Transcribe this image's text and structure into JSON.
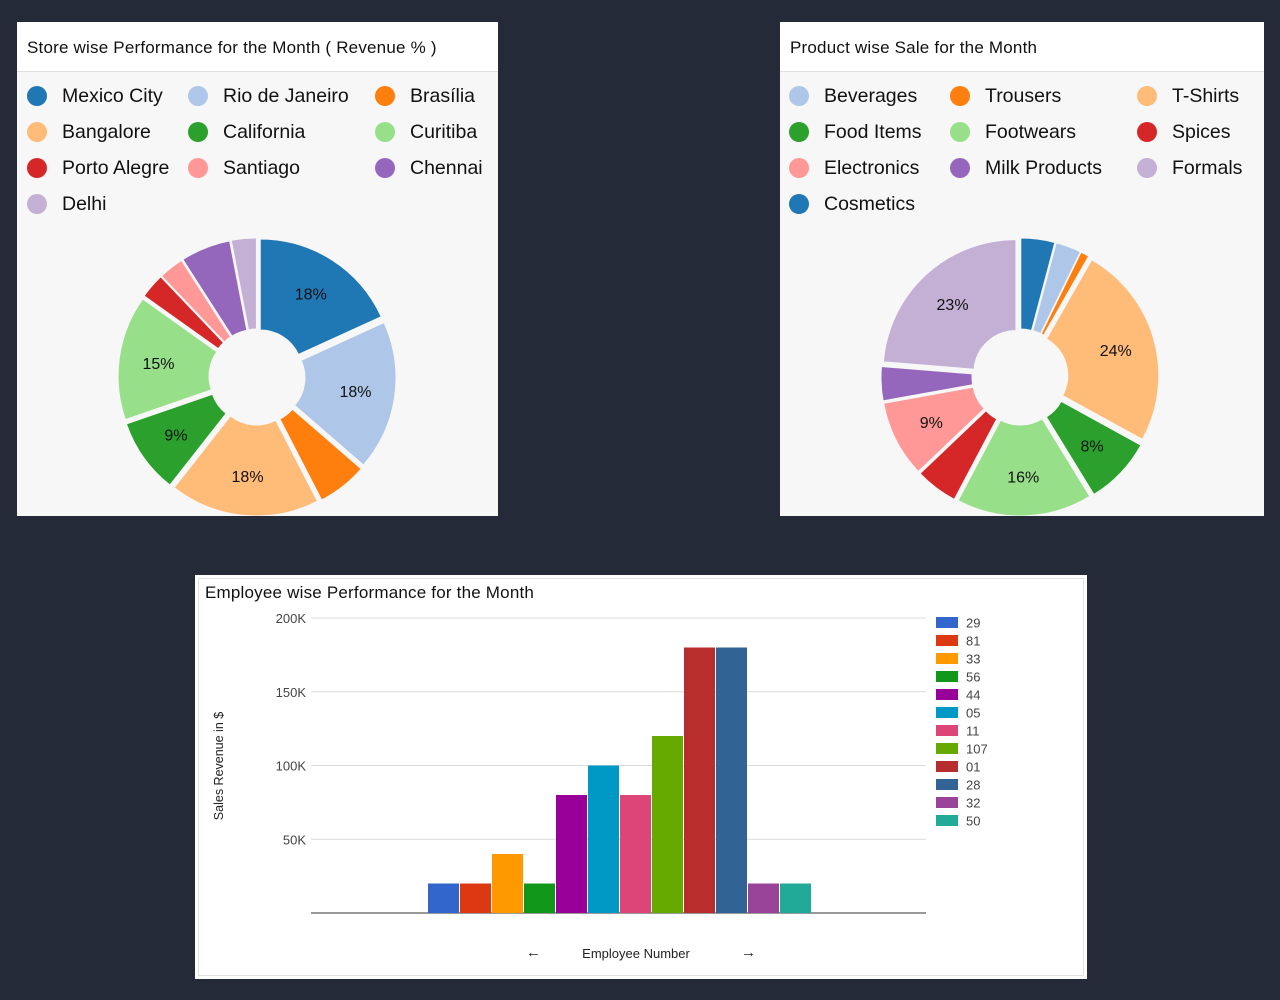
{
  "store_card": {
    "title": "Store wise Performance for the Month ( Revenue % )",
    "legend": [
      {
        "label": "Mexico City",
        "color": "#1f77b4"
      },
      {
        "label": "Rio de Janeiro",
        "color": "#aec7e8"
      },
      {
        "label": "Brasília",
        "color": "#ff7f0e"
      },
      {
        "label": "Bangalore",
        "color": "#ffbb78"
      },
      {
        "label": "California",
        "color": "#2ca02c"
      },
      {
        "label": "Curitiba",
        "color": "#98df8a"
      },
      {
        "label": "Porto Alegre",
        "color": "#d62728"
      },
      {
        "label": "Santiago",
        "color": "#ff9896"
      },
      {
        "label": "Chennai",
        "color": "#9467bd"
      },
      {
        "label": "Delhi",
        "color": "#c5b0d5"
      }
    ]
  },
  "product_card": {
    "title": "Product wise Sale for the Month",
    "legend": [
      {
        "label": "Beverages",
        "color": "#aec7e8"
      },
      {
        "label": "Trousers",
        "color": "#ff7f0e"
      },
      {
        "label": "T-Shirts",
        "color": "#ffbb78"
      },
      {
        "label": "Food Items",
        "color": "#2ca02c"
      },
      {
        "label": "Footwears",
        "color": "#98df8a"
      },
      {
        "label": "Spices",
        "color": "#d62728"
      },
      {
        "label": "Electronics",
        "color": "#ff9896"
      },
      {
        "label": "Milk Products",
        "color": "#9467bd"
      },
      {
        "label": "Formals",
        "color": "#c5b0d5"
      },
      {
        "label": "Cosmetics",
        "color": "#1f77b4"
      }
    ]
  },
  "employee_card": {
    "title": "Employee wise Performance for the Month",
    "nav_prev": "←",
    "nav_next": "→"
  },
  "chart_data": [
    {
      "type": "pie",
      "title": "Store wise Performance for the Month ( Revenue % )",
      "slices": [
        {
          "label": "Mexico City",
          "value": 18,
          "color": "#1f77b4",
          "show": "18%"
        },
        {
          "label": "Rio de Janeiro",
          "value": 18,
          "color": "#aec7e8",
          "show": "18%"
        },
        {
          "label": "Brasília",
          "value": 6,
          "color": "#ff7f0e",
          "show": ""
        },
        {
          "label": "Bangalore",
          "value": 18,
          "color": "#ffbb78",
          "show": "18%"
        },
        {
          "label": "California",
          "value": 9,
          "color": "#2ca02c",
          "show": "9%"
        },
        {
          "label": "Curitiba",
          "value": 15,
          "color": "#98df8a",
          "show": "15%"
        },
        {
          "label": "Porto Alegre",
          "value": 3,
          "color": "#d62728",
          "show": ""
        },
        {
          "label": "Santiago",
          "value": 3,
          "color": "#ff9896",
          "show": ""
        },
        {
          "label": "Chennai",
          "value": 6,
          "color": "#9467bd",
          "show": ""
        },
        {
          "label": "Delhi",
          "value": 3,
          "color": "#c5b0d5",
          "show": ""
        }
      ]
    },
    {
      "type": "pie",
      "title": "Product wise Sale for the Month",
      "slices": [
        {
          "label": "Cosmetics",
          "value": 4,
          "color": "#1f77b4",
          "show": ""
        },
        {
          "label": "Beverages",
          "value": 3,
          "color": "#aec7e8",
          "show": ""
        },
        {
          "label": "Trousers",
          "value": 1,
          "color": "#ff7f0e",
          "show": ""
        },
        {
          "label": "T-Shirts",
          "value": 24,
          "color": "#ffbb78",
          "show": "24%"
        },
        {
          "label": "Food Items",
          "value": 8,
          "color": "#2ca02c",
          "show": "8%"
        },
        {
          "label": "Footwears",
          "value": 16,
          "color": "#98df8a",
          "show": "16%"
        },
        {
          "label": "Spices",
          "value": 5,
          "color": "#d62728",
          "show": ""
        },
        {
          "label": "Electronics",
          "value": 9,
          "color": "#ff9896",
          "show": "9%"
        },
        {
          "label": "Milk Products",
          "value": 4,
          "color": "#9467bd",
          "show": ""
        },
        {
          "label": "Formals",
          "value": 23,
          "color": "#c5b0d5",
          "show": "23%"
        }
      ]
    },
    {
      "type": "bar",
      "title": "Employee wise Performance for the Month",
      "xlabel": "Employee Number",
      "ylabel": "Sales Revenue in $",
      "ylim": [
        0,
        200000
      ],
      "yticks": [
        {
          "v": 50000,
          "label": "50K"
        },
        {
          "v": 100000,
          "label": "100K"
        },
        {
          "v": 150000,
          "label": "150K"
        },
        {
          "v": 200000,
          "label": "200K"
        }
      ],
      "legend_position": "right",
      "series": [
        {
          "name": "29",
          "value": 20000,
          "color": "#3366cc"
        },
        {
          "name": "81",
          "value": 20000,
          "color": "#dc3912"
        },
        {
          "name": "33",
          "value": 40000,
          "color": "#ff9900"
        },
        {
          "name": "56",
          "value": 20000,
          "color": "#109618"
        },
        {
          "name": "44",
          "value": 80000,
          "color": "#990099"
        },
        {
          "name": "05",
          "value": 100000,
          "color": "#0099c6"
        },
        {
          "name": "11",
          "value": 80000,
          "color": "#dd4477"
        },
        {
          "name": "107",
          "value": 120000,
          "color": "#66aa00"
        },
        {
          "name": "01",
          "value": 180000,
          "color": "#b82e2e"
        },
        {
          "name": "28",
          "value": 180000,
          "color": "#316395"
        },
        {
          "name": "32",
          "value": 20000,
          "color": "#994499"
        },
        {
          "name": "50",
          "value": 20000,
          "color": "#22aa99"
        }
      ]
    }
  ]
}
